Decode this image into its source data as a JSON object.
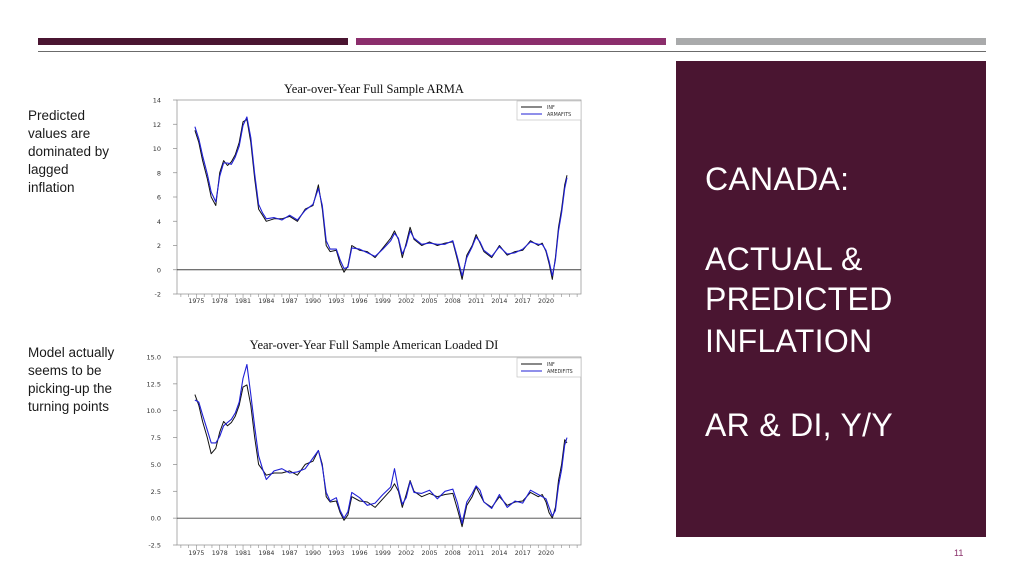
{
  "colors": {
    "dark_bar": "#4a1531",
    "magenta_bar": "#8b2e6c",
    "gray_bar": "#a9aaab",
    "panel": "#4a1531",
    "series_actual": "#111111",
    "series_fitted": "#1f1fd6"
  },
  "heading": {
    "line1": "CANADA:",
    "line2": "ACTUAL &",
    "line3": "PREDICTED",
    "line4": "INFLATION",
    "line5": "AR & DI, Y/Y"
  },
  "notes": {
    "top": "Predicted\nvalues are\ndominated by\nlagged\ninflation",
    "bottom": "Model actually\nseems to be\npicking-up the\nturning points"
  },
  "page_number": "11",
  "chart_data": [
    {
      "type": "line",
      "title": "Year-over-Year Full Sample ARMA",
      "xlabel": "",
      "ylabel": "",
      "xlim": [
        1972.5,
        2024.5
      ],
      "ylim": [
        -2,
        14
      ],
      "yticks": [
        "-2",
        "0",
        "2",
        "4",
        "6",
        "8",
        "10",
        "12",
        "14"
      ],
      "ytick_values": [
        -2,
        0,
        2,
        4,
        6,
        8,
        10,
        12,
        14
      ],
      "xticks": [
        "1975",
        "1978",
        "1981",
        "1984",
        "1987",
        "1990",
        "1993",
        "1996",
        "1999",
        "2002",
        "2005",
        "2008",
        "2011",
        "2014",
        "2017",
        "2020"
      ],
      "legend": [
        "INF",
        "ARMAFITS"
      ],
      "legend_position": "top-right",
      "series": [
        {
          "name": "INF",
          "x": [
            1974.8,
            1975.3,
            1975.8,
            1976.4,
            1976.9,
            1977.5,
            1978.0,
            1978.5,
            1979.0,
            1979.5,
            1980.0,
            1980.5,
            1981.0,
            1981.5,
            1982.0,
            1982.5,
            1983.0,
            1983.5,
            1984.0,
            1985.0,
            1986.0,
            1987.0,
            1988.0,
            1989.0,
            1990.0,
            1990.7,
            1991.2,
            1991.7,
            1992.2,
            1993.0,
            1993.5,
            1994.0,
            1994.5,
            1995.0,
            1996.0,
            1997.0,
            1998.0,
            1999.0,
            2000.0,
            2000.5,
            2001.0,
            2001.5,
            2002.0,
            2002.5,
            2003.0,
            2004.0,
            2005.0,
            2006.0,
            2007.0,
            2008.0,
            2008.6,
            2009.2,
            2009.8,
            2010.5,
            2011.0,
            2011.5,
            2012.0,
            2013.0,
            2014.0,
            2015.0,
            2016.0,
            2017.0,
            2018.0,
            2019.0,
            2019.5,
            2020.0,
            2020.4,
            2020.8,
            2021.2,
            2021.6,
            2022.0,
            2022.4,
            2022.7
          ],
          "values": [
            11.5,
            10.5,
            9.0,
            7.5,
            6.0,
            5.3,
            8.0,
            9.0,
            8.6,
            8.9,
            9.5,
            10.5,
            12.2,
            12.4,
            10.5,
            7.5,
            5.0,
            4.5,
            4.0,
            4.2,
            4.2,
            4.4,
            4.0,
            5.0,
            5.3,
            7.0,
            5.0,
            2.0,
            1.5,
            1.6,
            0.5,
            -0.2,
            0.3,
            2.0,
            1.6,
            1.5,
            1.0,
            1.8,
            2.6,
            3.2,
            2.5,
            1.0,
            2.2,
            3.5,
            2.5,
            2.0,
            2.3,
            2.0,
            2.2,
            2.3,
            0.8,
            -0.8,
            1.2,
            2.0,
            2.9,
            2.2,
            1.5,
            1.0,
            2.0,
            1.2,
            1.5,
            1.6,
            2.4,
            2.0,
            2.2,
            1.5,
            0.5,
            -0.8,
            1.0,
            3.5,
            5.0,
            7.0,
            7.8
          ]
        },
        {
          "name": "ARMAFITS",
          "x": [
            1974.8,
            1975.3,
            1975.8,
            1976.4,
            1976.9,
            1977.5,
            1978.0,
            1978.5,
            1979.0,
            1979.5,
            1980.0,
            1980.5,
            1981.0,
            1981.5,
            1982.0,
            1982.5,
            1983.0,
            1983.5,
            1984.0,
            1985.0,
            1986.0,
            1987.0,
            1988.0,
            1989.0,
            1990.0,
            1990.7,
            1991.2,
            1991.7,
            1992.2,
            1993.0,
            1993.5,
            1994.0,
            1994.5,
            1995.0,
            1996.0,
            1997.0,
            1998.0,
            1999.0,
            2000.0,
            2000.5,
            2001.0,
            2001.5,
            2002.0,
            2002.5,
            2003.0,
            2004.0,
            2005.0,
            2006.0,
            2007.0,
            2008.0,
            2008.6,
            2009.2,
            2009.8,
            2010.5,
            2011.0,
            2011.5,
            2012.0,
            2013.0,
            2014.0,
            2015.0,
            2016.0,
            2017.0,
            2018.0,
            2019.0,
            2019.5,
            2020.0,
            2020.4,
            2020.8,
            2021.2,
            2021.6,
            2022.0,
            2022.4,
            2022.7
          ],
          "values": [
            11.8,
            10.8,
            9.4,
            7.9,
            6.4,
            5.6,
            7.7,
            8.8,
            8.8,
            8.7,
            9.3,
            10.2,
            11.9,
            12.6,
            10.9,
            7.9,
            5.4,
            4.7,
            4.2,
            4.3,
            4.1,
            4.5,
            4.1,
            4.9,
            5.4,
            6.7,
            5.3,
            2.4,
            1.7,
            1.7,
            0.8,
            0.1,
            0.2,
            1.8,
            1.7,
            1.4,
            1.1,
            1.7,
            2.4,
            3.0,
            2.6,
            1.3,
            2.0,
            3.2,
            2.6,
            2.1,
            2.2,
            2.1,
            2.1,
            2.4,
            1.0,
            -0.5,
            1.0,
            1.9,
            2.7,
            2.3,
            1.6,
            1.1,
            1.9,
            1.3,
            1.4,
            1.7,
            2.3,
            2.1,
            2.1,
            1.6,
            0.7,
            -0.5,
            0.8,
            3.2,
            4.7,
            6.7,
            7.6
          ]
        }
      ]
    },
    {
      "type": "line",
      "title": "Year-over-Year Full Sample American Loaded DI",
      "xlabel": "",
      "ylabel": "",
      "xlim": [
        1972.5,
        2024.5
      ],
      "ylim": [
        -2.5,
        15.0
      ],
      "yticks": [
        "-2.5",
        "0.0",
        "2.5",
        "5.0",
        "7.5",
        "10.0",
        "12.5",
        "15.0"
      ],
      "ytick_values": [
        -2.5,
        0,
        2.5,
        5,
        7.5,
        10,
        12.5,
        15
      ],
      "xticks": [
        "1975",
        "1978",
        "1981",
        "1984",
        "1987",
        "1990",
        "1993",
        "1996",
        "1999",
        "2002",
        "2005",
        "2008",
        "2011",
        "2014",
        "2017",
        "2020"
      ],
      "legend": [
        "INF",
        "AMEDIFITS"
      ],
      "legend_position": "top-right",
      "series": [
        {
          "name": "INF",
          "x": [
            1974.8,
            1975.3,
            1975.8,
            1976.4,
            1976.9,
            1977.5,
            1978.0,
            1978.5,
            1979.0,
            1979.5,
            1980.0,
            1980.5,
            1981.0,
            1981.5,
            1982.0,
            1982.5,
            1983.0,
            1983.5,
            1984.0,
            1985.0,
            1986.0,
            1987.0,
            1988.0,
            1989.0,
            1990.0,
            1990.7,
            1991.2,
            1991.7,
            1992.2,
            1993.0,
            1993.5,
            1994.0,
            1994.5,
            1995.0,
            1996.0,
            1997.0,
            1998.0,
            1999.0,
            2000.0,
            2000.5,
            2001.0,
            2001.5,
            2002.0,
            2002.5,
            2003.0,
            2004.0,
            2005.0,
            2006.0,
            2007.0,
            2008.0,
            2008.6,
            2009.2,
            2009.8,
            2010.5,
            2011.0,
            2011.5,
            2012.0,
            2013.0,
            2014.0,
            2015.0,
            2016.0,
            2017.0,
            2018.0,
            2019.0,
            2019.5,
            2020.0,
            2020.4,
            2020.8,
            2021.2,
            2021.6,
            2022.0,
            2022.4,
            2022.7
          ],
          "values": [
            11.5,
            10.5,
            9.0,
            7.5,
            6.0,
            6.5,
            8.0,
            9.0,
            8.6,
            8.9,
            9.5,
            10.5,
            12.2,
            12.4,
            10.5,
            7.5,
            5.0,
            4.5,
            4.0,
            4.2,
            4.2,
            4.4,
            4.0,
            5.0,
            5.3,
            6.3,
            5.0,
            2.0,
            1.5,
            1.6,
            0.5,
            -0.2,
            0.3,
            2.0,
            1.6,
            1.5,
            1.0,
            1.8,
            2.6,
            3.2,
            2.5,
            1.0,
            2.2,
            3.5,
            2.5,
            2.0,
            2.3,
            2.0,
            2.2,
            2.3,
            0.8,
            -0.8,
            1.2,
            2.0,
            2.9,
            2.2,
            1.5,
            1.0,
            2.0,
            1.2,
            1.5,
            1.6,
            2.4,
            2.0,
            2.2,
            1.5,
            0.5,
            0.0,
            1.0,
            3.5,
            5.0,
            7.3,
            7.0
          ]
        },
        {
          "name": "AMEDIFITS",
          "x": [
            1974.8,
            1975.3,
            1975.8,
            1976.4,
            1976.9,
            1977.5,
            1978.0,
            1978.5,
            1979.0,
            1979.5,
            1980.0,
            1980.5,
            1981.0,
            1981.5,
            1982.0,
            1982.5,
            1983.0,
            1983.5,
            1984.0,
            1985.0,
            1986.0,
            1987.0,
            1988.0,
            1989.0,
            1990.0,
            1990.7,
            1991.2,
            1991.7,
            1992.2,
            1993.0,
            1993.5,
            1994.0,
            1994.5,
            1995.0,
            1996.0,
            1997.0,
            1998.0,
            1999.0,
            2000.0,
            2000.5,
            2001.0,
            2001.5,
            2002.0,
            2002.5,
            2003.0,
            2004.0,
            2005.0,
            2006.0,
            2007.0,
            2008.0,
            2008.6,
            2009.2,
            2009.8,
            2010.5,
            2011.0,
            2011.5,
            2012.0,
            2013.0,
            2014.0,
            2015.0,
            2016.0,
            2017.0,
            2018.0,
            2019.0,
            2019.5,
            2020.0,
            2020.4,
            2020.8,
            2021.2,
            2021.6,
            2022.0,
            2022.4,
            2022.7
          ],
          "values": [
            11.0,
            10.8,
            9.6,
            8.2,
            7.0,
            7.0,
            7.6,
            8.6,
            8.9,
            9.2,
            9.8,
            10.8,
            13.0,
            14.3,
            11.5,
            8.5,
            5.8,
            4.6,
            3.6,
            4.4,
            4.6,
            4.2,
            4.3,
            4.6,
            5.6,
            6.3,
            4.8,
            2.4,
            1.6,
            1.9,
            0.7,
            0.0,
            0.6,
            2.4,
            1.9,
            1.2,
            1.4,
            2.2,
            2.9,
            4.6,
            2.7,
            1.3,
            1.9,
            3.4,
            2.4,
            2.3,
            2.6,
            1.8,
            2.5,
            2.7,
            1.4,
            -0.5,
            1.5,
            2.3,
            3.0,
            2.6,
            1.5,
            0.9,
            2.2,
            1.0,
            1.6,
            1.4,
            2.6,
            2.2,
            2.0,
            1.8,
            1.0,
            0.2,
            0.7,
            3.0,
            4.5,
            6.8,
            7.5
          ]
        }
      ]
    }
  ]
}
